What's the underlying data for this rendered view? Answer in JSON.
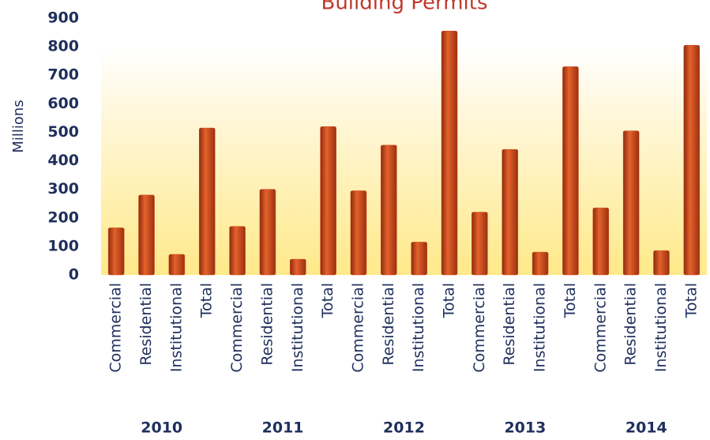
{
  "chart_data": {
    "type": "bar",
    "title": "Building Permits",
    "y_label": "Millions",
    "categories": [
      "Commercial",
      "Residential",
      "Institutional",
      "Total",
      "Commercial",
      "Residential",
      "Institutional",
      "Total",
      "Commercial",
      "Residential",
      "Institutional",
      "Total",
      "Commercial",
      "Residential",
      "Institutional",
      "Total",
      "Commercial",
      "Residential",
      "Institutional",
      "Total"
    ],
    "groups": [
      "2010",
      "2011",
      "2012",
      "2013",
      "2014"
    ],
    "values": [
      165,
      280,
      72,
      515,
      170,
      300,
      55,
      520,
      295,
      455,
      115,
      855,
      220,
      440,
      80,
      730,
      235,
      505,
      85,
      805
    ],
    "color": "#d2451e",
    "ylim": [
      0,
      900
    ],
    "yticks": [
      0,
      100,
      200,
      300,
      400,
      500,
      600,
      700,
      800,
      900
    ],
    "grid": false
  }
}
